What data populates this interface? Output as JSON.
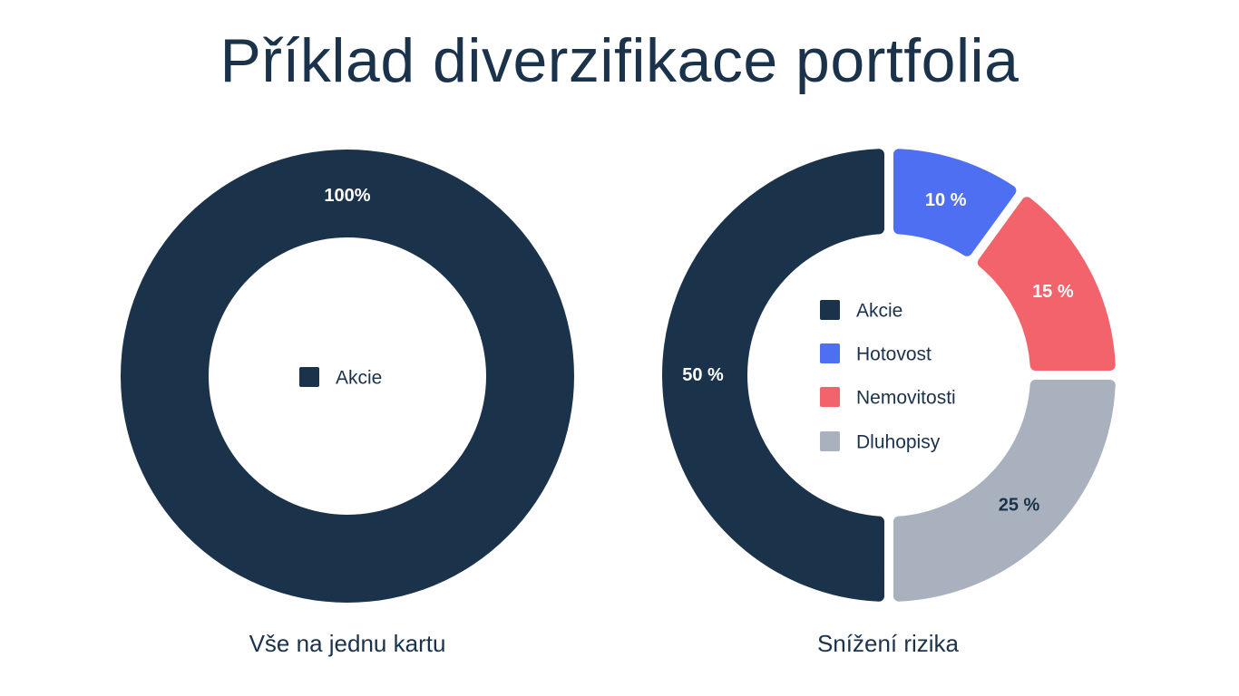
{
  "title": "Příklad diverzifikace portfolia",
  "chart_data": [
    {
      "type": "pie",
      "variant": "donut",
      "caption": "Vše na jednu kartu",
      "slices": [
        {
          "label": "Akcie",
          "value": 100,
          "display": "100%",
          "color": "#1b324b",
          "label_color": "#ffffff"
        }
      ],
      "legend": [
        "Akcie"
      ],
      "legend_placement": "center"
    },
    {
      "type": "pie",
      "variant": "donut",
      "caption": "Snížení rizika",
      "slices": [
        {
          "label": "Hotovost",
          "value": 10,
          "display": "10 %",
          "color": "#4f6ff2",
          "label_color": "#ffffff"
        },
        {
          "label": "Nemovitosti",
          "value": 15,
          "display": "15 %",
          "color": "#f2636b",
          "label_color": "#ffffff"
        },
        {
          "label": "Dluhopisy",
          "value": 25,
          "display": "25 %",
          "color": "#a8b1bd",
          "label_color": "#1b324b"
        },
        {
          "label": "Akcie",
          "value": 50,
          "display": "50 %",
          "color": "#1b324b",
          "label_color": "#ffffff"
        }
      ],
      "legend": [
        "Akcie",
        "Hotovost",
        "Nemovitosti",
        "Dluhopisy"
      ],
      "legend_colors": [
        "#1b324b",
        "#4f6ff2",
        "#f2636b",
        "#a8b1bd"
      ],
      "legend_placement": "center"
    }
  ]
}
